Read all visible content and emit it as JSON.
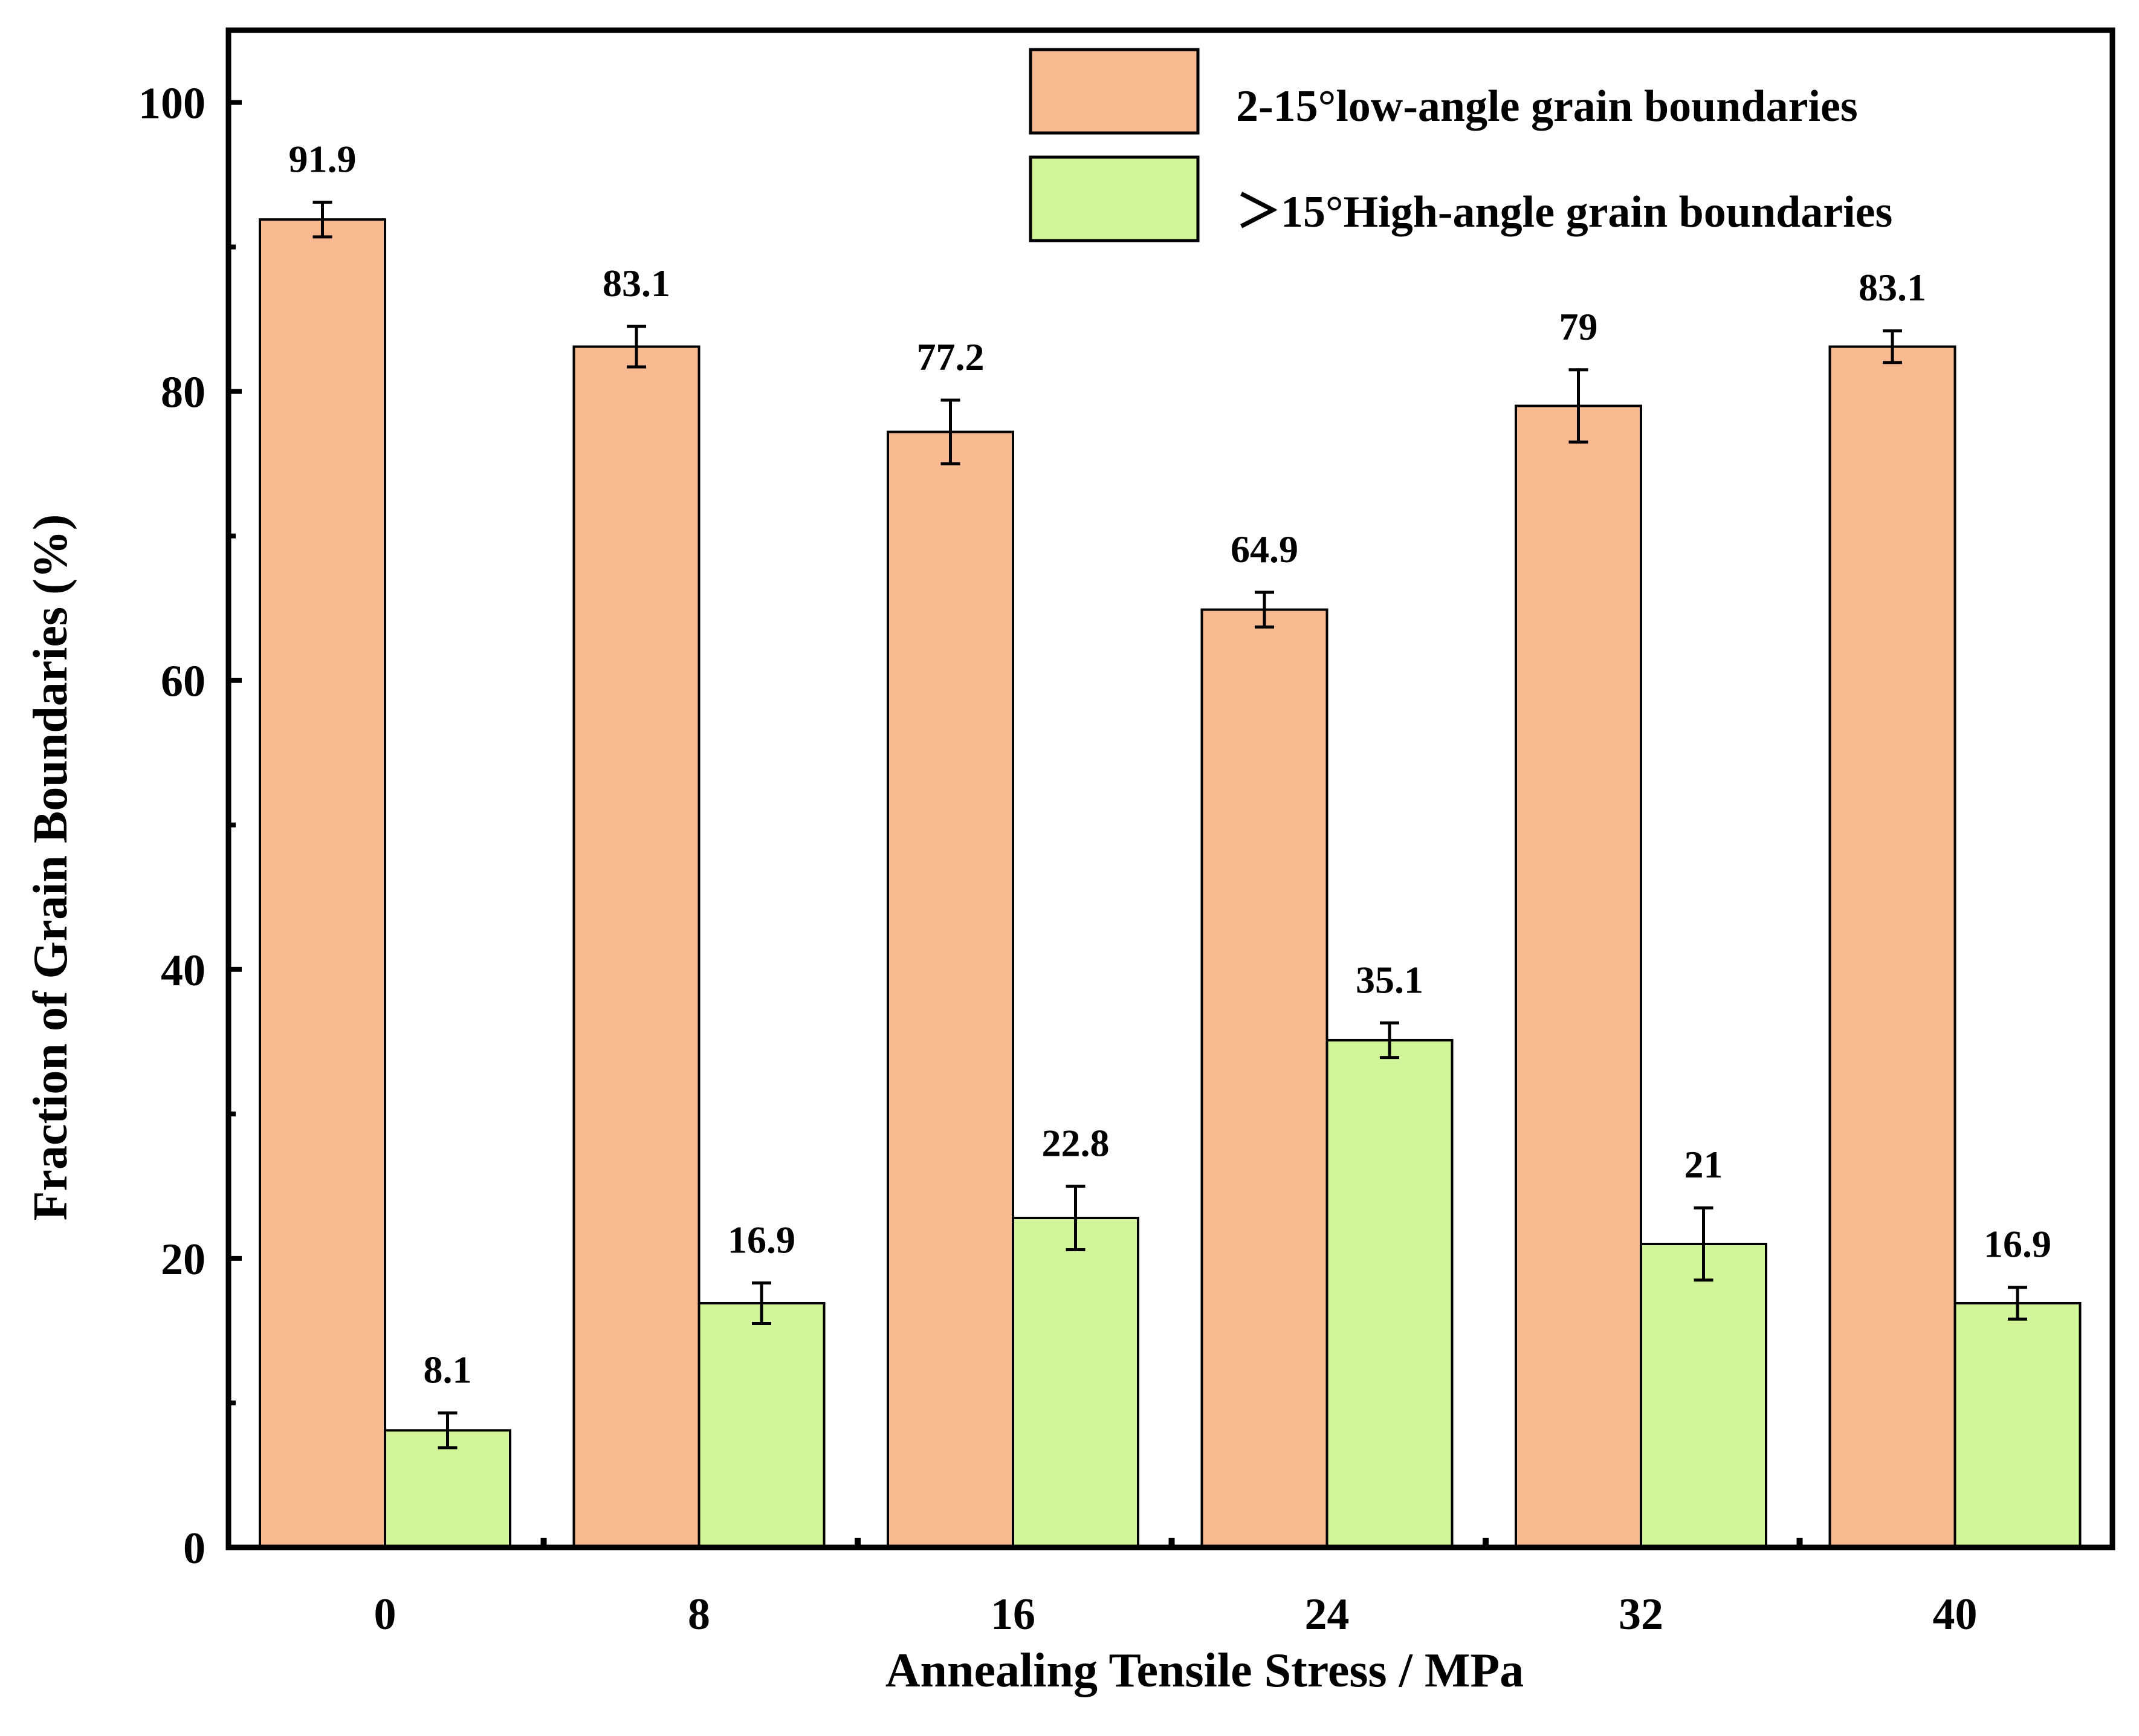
{
  "chart_data": {
    "type": "bar",
    "title": "",
    "xlabel": "Annealing Tensile Stress  / MPa",
    "ylabel": "Fraction of Grain Boundaries (%)",
    "ylim": [
      0,
      105
    ],
    "yticks": [
      0,
      20,
      40,
      60,
      80,
      100
    ],
    "categories": [
      "0",
      "8",
      "16",
      "24",
      "32",
      "40"
    ],
    "series": [
      {
        "name": "2-15°low-angle grain boundaries",
        "color": "#f9b991",
        "values": [
          91.9,
          83.1,
          77.2,
          64.9,
          79,
          83.1
        ],
        "labels": [
          "91.9",
          "83.1",
          "77.2",
          "64.9",
          "79",
          "83.1"
        ],
        "errors": [
          1.2,
          1.4,
          2.2,
          1.2,
          2.5,
          1.1
        ]
      },
      {
        "name": "＞15°High-angle grain boundaries",
        "color": "#d2f59a",
        "values": [
          8.1,
          16.9,
          22.8,
          35.1,
          21,
          16.9
        ],
        "labels": [
          "8.1",
          "16.9",
          "22.8",
          "35.1",
          "21",
          "16.9"
        ],
        "errors": [
          1.2,
          1.4,
          2.2,
          1.2,
          2.5,
          1.1
        ]
      }
    ],
    "legend_position": "top-right"
  }
}
